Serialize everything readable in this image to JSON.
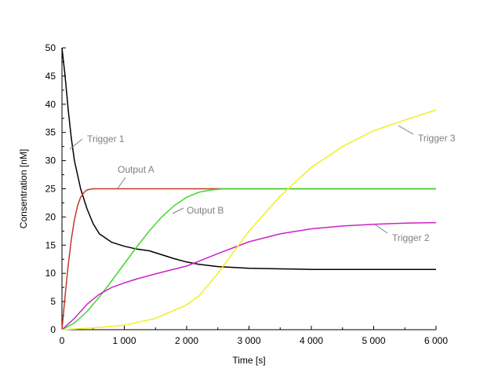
{
  "chart_data": {
    "type": "line",
    "xlabel": "Time [s]",
    "ylabel": "Consentration [nM]",
    "xlim": [
      0,
      6000
    ],
    "ylim": [
      0,
      50
    ],
    "xticks": [
      0,
      1000,
      2000,
      3000,
      4000,
      5000,
      6000
    ],
    "xtick_labels": [
      "0",
      "1 000",
      "2 000",
      "3 000",
      "4 000",
      "5 000",
      "6 000"
    ],
    "yticks": [
      0,
      5,
      10,
      15,
      20,
      25,
      30,
      35,
      40,
      45,
      50
    ],
    "ytick_labels": [
      "0",
      "5",
      "10",
      "15",
      "20",
      "25",
      "30",
      "35",
      "40",
      "45",
      "50"
    ],
    "grid": false,
    "legend": "none",
    "series": [
      {
        "name": "Trigger 1",
        "color": "#000000",
        "x": [
          0,
          50,
          100,
          150,
          200,
          300,
          400,
          500,
          600,
          800,
          1000,
          1200,
          1400,
          1600,
          1800,
          2000,
          2200,
          2500,
          3000,
          3500,
          4000,
          5000,
          6000
        ],
        "y": [
          50,
          45,
          39,
          34,
          30,
          25,
          21.5,
          18.8,
          17,
          15.5,
          14.8,
          14.3,
          14,
          13.3,
          12.6,
          12,
          11.6,
          11.2,
          10.9,
          10.8,
          10.7,
          10.7,
          10.7
        ]
      },
      {
        "name": "Output A",
        "color": "#c0392b",
        "x": [
          0,
          50,
          100,
          150,
          200,
          250,
          300,
          350,
          400,
          500,
          600,
          800,
          1000,
          2000,
          3000,
          4000,
          5000,
          6000
        ],
        "y": [
          0,
          6,
          11.5,
          16,
          19.5,
          22,
          23.5,
          24.3,
          24.8,
          25,
          25,
          25,
          25,
          25,
          25,
          25,
          25,
          25
        ]
      },
      {
        "name": "Output B",
        "color": "#44d62c",
        "x": [
          0,
          200,
          400,
          600,
          800,
          1000,
          1200,
          1400,
          1600,
          1800,
          2000,
          2200,
          2400,
          2600,
          3000,
          4000,
          5000,
          6000
        ],
        "y": [
          0,
          1.2,
          3.2,
          5.8,
          8.7,
          11.7,
          14.7,
          17.5,
          20,
          22,
          23.5,
          24.4,
          24.8,
          25,
          25,
          25,
          25,
          25
        ]
      },
      {
        "name": "Trigger 2",
        "color": "#cc22cc",
        "x": [
          0,
          200,
          400,
          600,
          800,
          1000,
          1200,
          1500,
          2000,
          2500,
          3000,
          3500,
          4000,
          4500,
          5000,
          5500,
          6000
        ],
        "y": [
          0,
          2,
          4.5,
          6.3,
          7.5,
          8.3,
          9,
          9.9,
          11.3,
          13.5,
          15.6,
          17,
          17.9,
          18.4,
          18.7,
          18.9,
          19
        ]
      },
      {
        "name": "Trigger 3",
        "color": "#f0f020",
        "x": [
          0,
          500,
          1000,
          1500,
          2000,
          2200,
          2500,
          2800,
          3000,
          3500,
          4000,
          4500,
          5000,
          5500,
          6000
        ],
        "y": [
          0,
          0.3,
          0.8,
          2,
          4.4,
          6,
          10,
          14.5,
          17.5,
          23.7,
          28.8,
          32.5,
          35.3,
          37.2,
          39
        ]
      }
    ],
    "annotations": [
      {
        "text": "Trigger 1",
        "series": "Trigger 1"
      },
      {
        "text": "Output A",
        "series": "Output A"
      },
      {
        "text": "Output B",
        "series": "Output B"
      },
      {
        "text": "Trigger 2",
        "series": "Trigger 2"
      },
      {
        "text": "Trigger 3",
        "series": "Trigger 3"
      }
    ]
  }
}
